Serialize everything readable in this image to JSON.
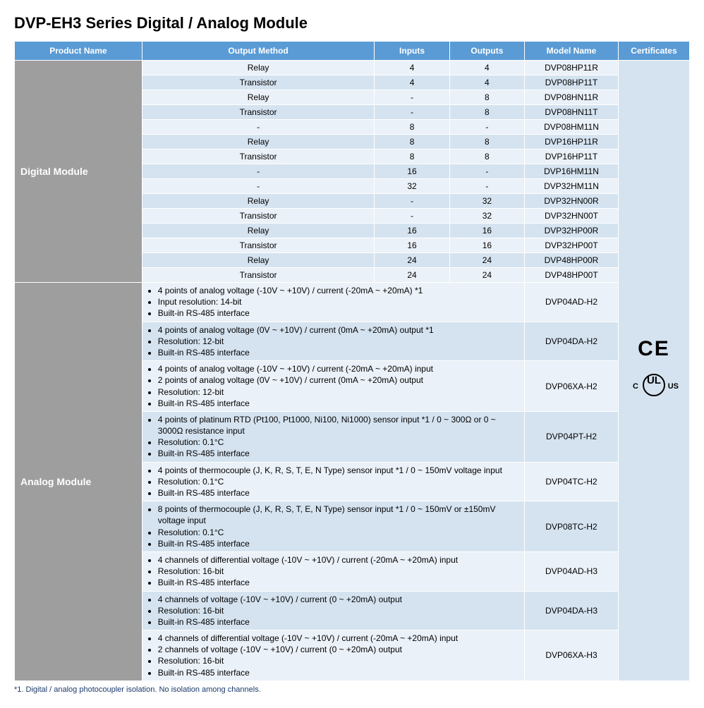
{
  "title": "DVP-EH3 Series Digital / Analog Module",
  "headers": {
    "product": "Product Name",
    "method": "Output Method",
    "inputs": "Inputs",
    "outputs": "Outputs",
    "model": "Model Name",
    "cert": "Certificates"
  },
  "categories": {
    "digital": "Digital Module",
    "analog": "Analog Module"
  },
  "digital_rows": [
    {
      "method": "Relay",
      "inputs": "4",
      "outputs": "4",
      "model": "DVP08HP11R"
    },
    {
      "method": "Transistor",
      "inputs": "4",
      "outputs": "4",
      "model": "DVP08HP11T"
    },
    {
      "method": "Relay",
      "inputs": "-",
      "outputs": "8",
      "model": "DVP08HN11R"
    },
    {
      "method": "Transistor",
      "inputs": "-",
      "outputs": "8",
      "model": "DVP08HN11T"
    },
    {
      "method": "-",
      "inputs": "8",
      "outputs": "-",
      "model": "DVP08HM11N"
    },
    {
      "method": "Relay",
      "inputs": "8",
      "outputs": "8",
      "model": "DVP16HP11R"
    },
    {
      "method": "Transistor",
      "inputs": "8",
      "outputs": "8",
      "model": "DVP16HP11T"
    },
    {
      "method": "-",
      "inputs": "16",
      "outputs": "-",
      "model": "DVP16HM11N"
    },
    {
      "method": "-",
      "inputs": "32",
      "outputs": "-",
      "model": "DVP32HM11N"
    },
    {
      "method": "Relay",
      "inputs": "-",
      "outputs": "32",
      "model": "DVP32HN00R"
    },
    {
      "method": "Transistor",
      "inputs": "-",
      "outputs": "32",
      "model": "DVP32HN00T"
    },
    {
      "method": "Relay",
      "inputs": "16",
      "outputs": "16",
      "model": "DVP32HP00R"
    },
    {
      "method": "Transistor",
      "inputs": "16",
      "outputs": "16",
      "model": "DVP32HP00T"
    },
    {
      "method": "Relay",
      "inputs": "24",
      "outputs": "24",
      "model": "DVP48HP00R"
    },
    {
      "method": "Transistor",
      "inputs": "24",
      "outputs": "24",
      "model": "DVP48HP00T"
    }
  ],
  "analog_rows": [
    {
      "bullets": [
        "4 points of analog voltage (-10V ~ +10V) / current (-20mA ~ +20mA) *1",
        "Input resolution: 14-bit",
        "Built-in RS-485 interface"
      ],
      "model": "DVP04AD-H2"
    },
    {
      "bullets": [
        "4 points of analog voltage (0V ~ +10V) / current (0mA ~ +20mA) output *1",
        "Resolution: 12-bit",
        "Built-in RS-485 interface"
      ],
      "model": "DVP04DA-H2"
    },
    {
      "bullets": [
        "4 points of analog voltage (-10V ~ +10V) / current (-20mA ~ +20mA) input",
        "2 points of analog voltage (0V ~ +10V) / current (0mA ~ +20mA) output",
        "Resolution: 12-bit",
        "Built-in RS-485 interface"
      ],
      "model": "DVP06XA-H2"
    },
    {
      "bullets": [
        "4 points of platinum RTD (Pt100, Pt1000, Ni100, Ni1000) sensor input *1 / 0 ~ 300Ω or 0 ~ 3000Ω resistance input",
        "Resolution: 0.1°C",
        "Built-in RS-485 interface"
      ],
      "model": "DVP04PT-H2"
    },
    {
      "bullets": [
        "4 points of thermocouple (J, K, R, S, T, E, N Type) sensor input *1 / 0 ~ 150mV voltage input",
        "Resolution: 0.1°C",
        "Built-in RS-485 interface"
      ],
      "model": "DVP04TC-H2"
    },
    {
      "bullets": [
        "8 points of thermocouple (J, K, R, S, T, E, N Type) sensor input *1 / 0 ~ 150mV or ±150mV voltage input",
        "Resolution: 0.1°C",
        "Built-in RS-485 interface"
      ],
      "model": "DVP08TC-H2"
    },
    {
      "bullets": [
        "4 channels of differential voltage (-10V ~ +10V) / current (-20mA ~ +20mA) input",
        "Resolution: 16-bit",
        "Built-in RS-485 interface"
      ],
      "model": "DVP04AD-H3"
    },
    {
      "bullets": [
        "4 channels of voltage (-10V ~ +10V) / current (0 ~ +20mA) output",
        "Resolution: 16-bit",
        "Built-in RS-485 interface"
      ],
      "model": "DVP04DA-H3"
    },
    {
      "bullets": [
        "4 channels of differential voltage (-10V ~ +10V) / current (-20mA ~ +20mA) input",
        "2 channels of voltage (-10V ~ +10V) / current (0 ~ +20mA) output",
        "Resolution: 16-bit",
        "Built-in RS-485 interface"
      ],
      "model": "DVP06XA-H3"
    }
  ],
  "cert": {
    "ce": "CE",
    "ul_c": "C",
    "ul_center": "UL",
    "ul_us": "US"
  },
  "footnote": "*1. Digital / analog photocoupler isolation. No isolation among channels.",
  "style": {
    "header_bg": "#5a9bd5",
    "row_even_bg": "#d5e3f0",
    "row_odd_bg": "#ebf1f8",
    "category_bg": "#9e9e9e"
  }
}
